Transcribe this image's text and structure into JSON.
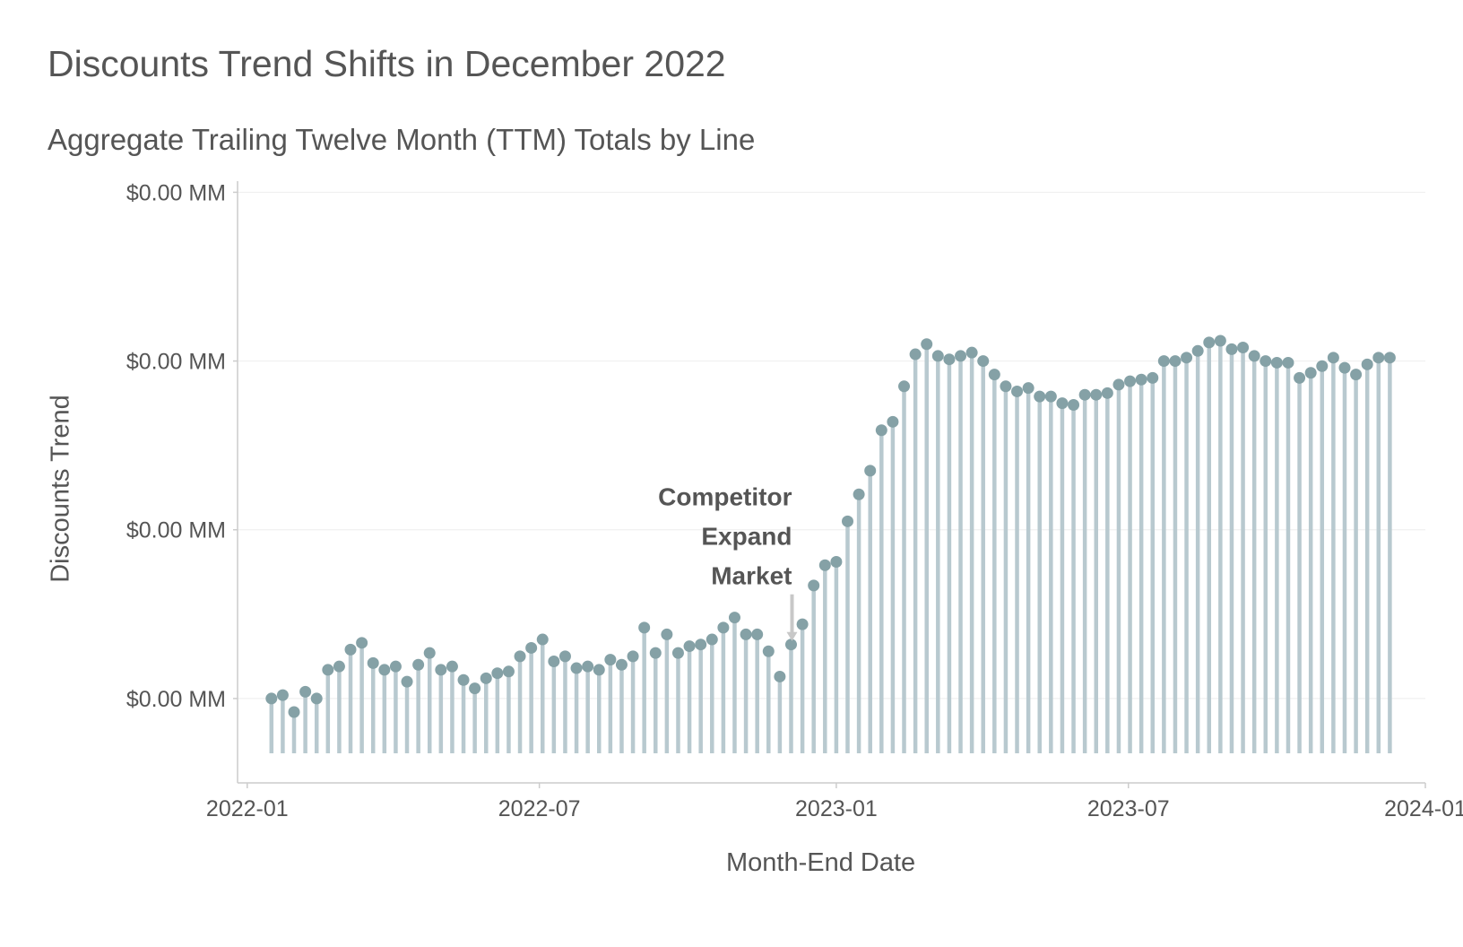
{
  "chart_data": {
    "type": "lollipop",
    "title": "Discounts Trend Shifts in December 2022",
    "subtitle": "Aggregate Trailing Twelve Month (TTM) Totals by Line",
    "xlabel": "Month-End Date",
    "ylabel": "Discounts Trend",
    "x_ticks": [
      "2022-01",
      "2022-07",
      "2023-01",
      "2023-07",
      "2024-01"
    ],
    "y_tick_labels": [
      "$0.00 MM",
      "$0.00 MM",
      "$0.00 MM",
      "$0.00 MM"
    ],
    "y_ticks": [
      0,
      1,
      2,
      3
    ],
    "ylim": [
      -0.5,
      3.05
    ],
    "xlim": [
      "2021-12-26",
      "2024-01-01"
    ],
    "grid": "horizontal major only",
    "colors": {
      "stem": "#b8c9cf",
      "point": "#85a1a6",
      "text": "#555555",
      "grid": "#eeeeee",
      "axis": "#cccccc",
      "annotation_arrow": "#c8c8c8"
    },
    "annotation": {
      "lines": [
        "Competitor",
        "Expand",
        "Market"
      ],
      "x": "2022-12-04",
      "y": 0.32
    },
    "x": [
      "2022-01-16",
      "2022-01-23",
      "2022-01-30",
      "2022-02-06",
      "2022-02-13",
      "2022-02-20",
      "2022-02-27",
      "2022-03-06",
      "2022-03-13",
      "2022-03-20",
      "2022-03-27",
      "2022-04-03",
      "2022-04-10",
      "2022-04-17",
      "2022-04-24",
      "2022-05-01",
      "2022-05-08",
      "2022-05-15",
      "2022-05-22",
      "2022-05-29",
      "2022-06-05",
      "2022-06-12",
      "2022-06-19",
      "2022-06-26",
      "2022-07-03",
      "2022-07-10",
      "2022-07-17",
      "2022-07-24",
      "2022-07-31",
      "2022-08-07",
      "2022-08-14",
      "2022-08-21",
      "2022-08-28",
      "2022-09-04",
      "2022-09-11",
      "2022-09-18",
      "2022-09-25",
      "2022-10-02",
      "2022-10-09",
      "2022-10-16",
      "2022-10-23",
      "2022-10-30",
      "2022-11-06",
      "2022-11-13",
      "2022-11-20",
      "2022-11-27",
      "2022-12-04",
      "2022-12-11",
      "2022-12-18",
      "2022-12-25",
      "2023-01-01",
      "2023-01-08",
      "2023-01-15",
      "2023-01-22",
      "2023-01-29",
      "2023-02-05",
      "2023-02-12",
      "2023-02-19",
      "2023-02-26",
      "2023-03-05",
      "2023-03-12",
      "2023-03-19",
      "2023-03-26",
      "2023-04-02",
      "2023-04-09",
      "2023-04-16",
      "2023-04-23",
      "2023-04-30",
      "2023-05-07",
      "2023-05-14",
      "2023-05-21",
      "2023-05-28",
      "2023-06-04",
      "2023-06-11",
      "2023-06-18",
      "2023-06-25",
      "2023-07-02",
      "2023-07-09",
      "2023-07-16",
      "2023-07-23",
      "2023-07-30",
      "2023-08-06",
      "2023-08-13",
      "2023-08-20",
      "2023-08-27",
      "2023-09-03",
      "2023-09-10",
      "2023-09-17",
      "2023-09-24",
      "2023-10-01",
      "2023-10-08",
      "2023-10-15",
      "2023-10-22",
      "2023-10-29",
      "2023-11-05",
      "2023-11-12",
      "2023-11-19",
      "2023-11-26",
      "2023-12-03",
      "2023-12-10"
    ],
    "values": [
      0.0,
      0.02,
      -0.08,
      0.04,
      0.0,
      0.17,
      0.19,
      0.29,
      0.33,
      0.21,
      0.17,
      0.19,
      0.1,
      0.2,
      0.27,
      0.17,
      0.19,
      0.11,
      0.06,
      0.12,
      0.15,
      0.16,
      0.25,
      0.3,
      0.35,
      0.22,
      0.25,
      0.18,
      0.19,
      0.17,
      0.23,
      0.2,
      0.25,
      0.42,
      0.27,
      0.38,
      0.27,
      0.31,
      0.32,
      0.35,
      0.42,
      0.48,
      0.38,
      0.38,
      0.28,
      0.13,
      0.32,
      0.44,
      0.67,
      0.79,
      0.81,
      1.05,
      1.21,
      1.35,
      1.59,
      1.64,
      1.85,
      2.04,
      2.1,
      2.03,
      2.01,
      2.03,
      2.05,
      2.0,
      1.92,
      1.85,
      1.82,
      1.84,
      1.79,
      1.79,
      1.75,
      1.74,
      1.8,
      1.8,
      1.81,
      1.86,
      1.88,
      1.89,
      1.9,
      2.0,
      2.0,
      2.02,
      2.06,
      2.11,
      2.12,
      2.07,
      2.08,
      2.03,
      2.0,
      1.99,
      1.99,
      1.9,
      1.93,
      1.97,
      2.02,
      1.96,
      1.92,
      1.98,
      2.02,
      2.02
    ]
  }
}
